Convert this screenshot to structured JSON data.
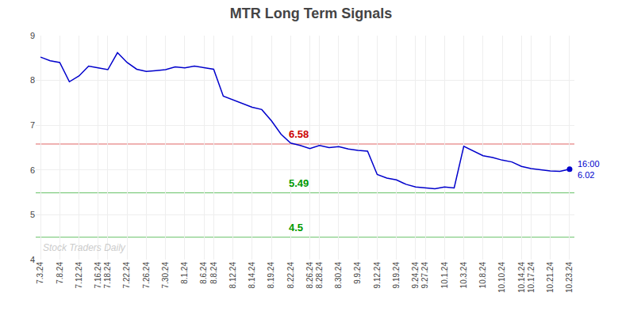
{
  "chart_data": {
    "type": "line",
    "title": "MTR Long Term Signals",
    "categories": [
      "7.3.24",
      null,
      "7.8.24",
      null,
      "7.12.24",
      null,
      "7.16.24",
      "7.18.24",
      null,
      "7.22.24",
      null,
      "7.26.24",
      null,
      "7.30.24",
      null,
      "8.1.24",
      null,
      "8.6.24",
      "8.8.24",
      null,
      "8.12.24",
      null,
      "8.14.24",
      null,
      "8.19.24",
      null,
      "8.22.24",
      null,
      "8.26.24",
      "8.28.24",
      null,
      "8.30.24",
      null,
      "9.9.24",
      null,
      "9.12.24",
      null,
      "9.19.24",
      null,
      "9.24.24",
      "9.27.24",
      null,
      "10.1.24",
      null,
      "10.3.24",
      null,
      "10.8.24",
      null,
      "10.10.24",
      null,
      "10.14.24",
      "10.17.24",
      null,
      "10.21.24",
      null,
      "10.23.24"
    ],
    "values": [
      8.52,
      8.44,
      8.4,
      7.97,
      8.1,
      8.32,
      8.28,
      8.24,
      8.62,
      8.4,
      8.25,
      8.2,
      8.22,
      8.24,
      8.3,
      8.28,
      8.32,
      8.28,
      8.25,
      7.65,
      7.57,
      7.48,
      7.4,
      7.35,
      7.1,
      6.8,
      6.6,
      6.55,
      6.48,
      6.55,
      6.5,
      6.52,
      6.47,
      6.44,
      6.42,
      5.9,
      5.82,
      5.78,
      5.68,
      5.62,
      5.6,
      5.58,
      5.62,
      5.6,
      6.53,
      6.42,
      6.32,
      6.28,
      6.22,
      6.18,
      6.08,
      6.03,
      6.0,
      5.98,
      5.97,
      6.02
    ],
    "color": "#0000cc",
    "ylim": [
      4,
      9
    ],
    "yticks": [
      4,
      5,
      6,
      7,
      8,
      9
    ],
    "grid": true,
    "hlines": [
      {
        "value": 6.58,
        "label": "6.58",
        "color": "#cc0000"
      },
      {
        "value": 5.49,
        "label": "5.49",
        "color": "#009900"
      },
      {
        "value": 4.5,
        "label": "4.5",
        "color": "#009900"
      }
    ],
    "last_point": {
      "label": "16:00",
      "value": 6.02
    },
    "watermark": "Stock Traders Daily"
  }
}
